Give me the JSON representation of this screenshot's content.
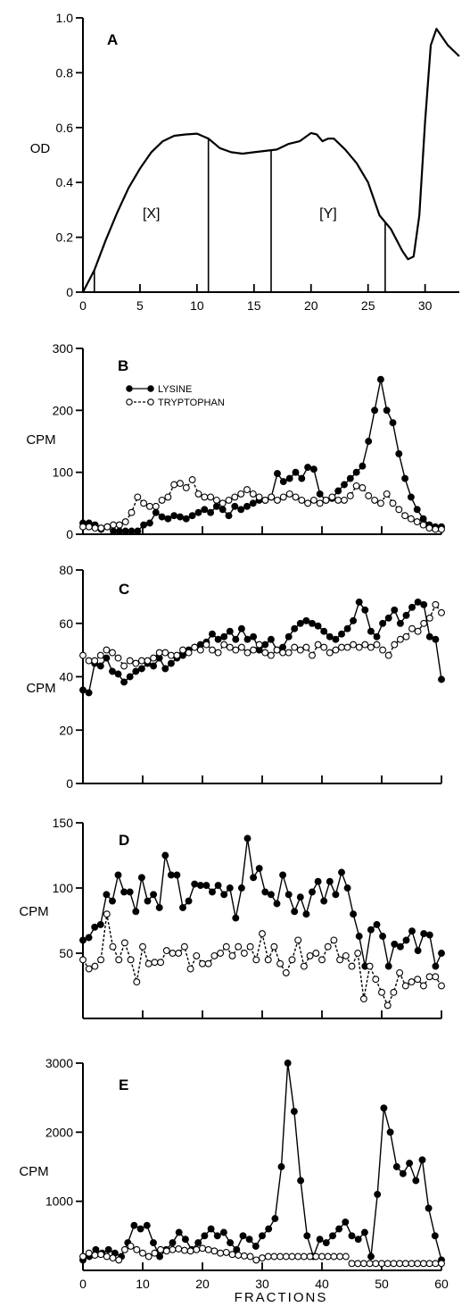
{
  "x_axis_title": "FRACTIONS",
  "chart_data": [
    {
      "type": "line",
      "panel": "A",
      "ylabel": "OD",
      "xlim": [
        0,
        33
      ],
      "ylim": [
        0,
        1.0
      ],
      "xticks": [
        0,
        5,
        10,
        15,
        20,
        25,
        30
      ],
      "yticks": [
        0,
        0.2,
        0.4,
        0.6,
        0.8,
        1.0
      ],
      "xticklabels": [
        "0",
        "5",
        "10",
        "15",
        "20",
        "25",
        "30"
      ],
      "yticklabels": [
        "0",
        "0.2",
        "0.4",
        "0.6",
        "0.8",
        "1.0"
      ],
      "dividers": [
        1,
        11,
        16.5,
        26.5
      ],
      "regions": [
        {
          "label": "[X]",
          "x": 6,
          "y": 0.27
        },
        {
          "label": "[Y]",
          "x": 21.5,
          "y": 0.27
        }
      ],
      "series": [
        {
          "x": [
            0,
            1,
            2,
            3,
            4,
            5,
            6,
            7,
            8,
            9,
            10,
            11,
            12,
            13,
            14,
            15,
            16,
            17,
            18,
            19,
            20,
            20.5,
            21,
            21.5,
            22,
            23,
            24,
            25,
            26,
            27,
            28,
            28.5,
            29,
            29.5,
            30,
            30.5,
            31,
            32,
            33
          ],
          "values": [
            0,
            0.08,
            0.19,
            0.29,
            0.38,
            0.45,
            0.51,
            0.55,
            0.57,
            0.575,
            0.578,
            0.56,
            0.525,
            0.51,
            0.505,
            0.51,
            0.515,
            0.52,
            0.54,
            0.55,
            0.58,
            0.575,
            0.55,
            0.56,
            0.56,
            0.52,
            0.47,
            0.4,
            0.28,
            0.23,
            0.15,
            0.12,
            0.13,
            0.28,
            0.62,
            0.9,
            0.96,
            0.9,
            0.86
          ]
        }
      ]
    },
    {
      "type": "line",
      "panel": "B",
      "ylabel": "CPM",
      "xlim": [
        0,
        60
      ],
      "ylim": [
        0,
        300
      ],
      "xticks": [
        0,
        10,
        20,
        30,
        40,
        50,
        60
      ],
      "yticks": [
        0,
        100,
        200,
        300
      ],
      "yticklabels": [
        "0",
        "100",
        "200",
        "300"
      ],
      "legend": [
        "LYSINE",
        "TRYPTOPHAN"
      ],
      "series": [
        {
          "name": "LYSINE",
          "style": "filled-solid",
          "values": [
            18,
            18,
            15,
            8,
            12,
            5,
            5,
            5,
            5,
            5,
            15,
            18,
            35,
            28,
            25,
            30,
            28,
            25,
            30,
            35,
            40,
            35,
            45,
            40,
            30,
            45,
            40,
            45,
            50,
            55,
            55,
            60,
            98,
            85,
            90,
            100,
            90,
            108,
            105,
            65,
            55,
            58,
            70,
            80,
            90,
            100,
            110,
            150,
            200,
            250,
            200,
            180,
            130,
            90,
            60,
            40,
            25,
            15,
            12,
            12
          ]
        },
        {
          "name": "TRYPTOPHAN",
          "style": "open-dashed",
          "values": [
            12,
            12,
            10,
            10,
            12,
            15,
            15,
            20,
            35,
            60,
            50,
            45,
            45,
            55,
            60,
            80,
            82,
            75,
            88,
            65,
            60,
            60,
            55,
            50,
            55,
            60,
            65,
            72,
            65,
            60,
            55,
            60,
            55,
            60,
            65,
            60,
            55,
            50,
            55,
            50,
            55,
            60,
            55,
            55,
            62,
            78,
            75,
            62,
            55,
            50,
            65,
            50,
            40,
            30,
            25,
            20,
            15,
            10,
            8,
            8
          ]
        }
      ]
    },
    {
      "type": "line",
      "panel": "C",
      "ylabel": "CPM",
      "xlim": [
        0,
        60
      ],
      "ylim": [
        0,
        80
      ],
      "xticks": [
        0,
        10,
        20,
        30,
        40,
        50,
        60
      ],
      "yticks": [
        0,
        20,
        40,
        60,
        80
      ],
      "yticklabels": [
        "0",
        "20",
        "40",
        "60",
        "80"
      ],
      "series": [
        {
          "name": "LYSINE",
          "style": "filled-solid",
          "values": [
            35,
            34,
            45,
            44,
            47,
            42,
            41,
            38,
            40,
            42,
            43,
            45,
            44,
            47,
            43,
            45,
            47,
            48,
            50,
            51,
            52,
            53,
            56,
            54,
            55,
            57,
            54,
            58,
            54,
            55,
            50,
            52,
            54,
            50,
            51,
            55,
            58,
            60,
            61,
            60,
            59,
            57,
            55,
            54,
            56,
            58,
            61,
            68,
            65,
            57,
            55,
            60,
            62,
            65,
            60,
            63,
            66,
            68,
            67,
            55,
            54,
            39
          ]
        },
        {
          "name": "TRYPTOPHAN",
          "style": "open-dashed",
          "values": [
            48,
            46,
            46,
            48,
            50,
            49,
            47,
            44,
            46,
            45,
            46,
            46,
            47,
            49,
            49,
            48,
            48,
            50,
            49,
            51,
            50,
            52,
            50,
            49,
            52,
            51,
            50,
            51,
            49,
            50,
            52,
            49,
            48,
            50,
            49,
            49,
            51,
            50,
            51,
            48,
            52,
            51,
            49,
            50,
            51,
            51,
            52,
            51,
            52,
            51,
            52,
            50,
            48,
            52,
            54,
            55,
            58,
            57,
            60,
            62,
            67,
            64
          ]
        }
      ]
    },
    {
      "type": "line",
      "panel": "D",
      "ylabel": "CPM",
      "xlim": [
        0,
        60
      ],
      "ylim": [
        0,
        150
      ],
      "xticks": [
        0,
        10,
        20,
        30,
        40,
        50,
        60
      ],
      "yticks": [
        50,
        100,
        150
      ],
      "yticklabels": [
        "50",
        "100",
        "150"
      ],
      "series": [
        {
          "name": "LYSINE",
          "style": "filled-solid",
          "values": [
            60,
            62,
            70,
            72,
            95,
            90,
            110,
            97,
            97,
            82,
            108,
            90,
            95,
            85,
            125,
            110,
            110,
            85,
            90,
            103,
            102,
            102,
            97,
            102,
            95,
            100,
            77,
            100,
            138,
            108,
            115,
            97,
            95,
            88,
            110,
            95,
            82,
            93,
            80,
            97,
            105,
            90,
            105,
            95,
            112,
            100,
            80,
            63,
            40,
            68,
            72,
            63,
            40,
            57,
            55,
            60,
            67,
            52,
            65,
            64,
            40,
            50
          ]
        },
        {
          "name": "TRYPTOPHAN",
          "style": "open-dashed",
          "values": [
            45,
            38,
            40,
            45,
            80,
            55,
            45,
            58,
            45,
            28,
            55,
            42,
            43,
            43,
            52,
            50,
            50,
            55,
            38,
            48,
            42,
            42,
            48,
            50,
            55,
            48,
            55,
            50,
            55,
            45,
            65,
            45,
            55,
            42,
            35,
            45,
            60,
            40,
            48,
            50,
            45,
            55,
            60,
            45,
            48,
            40,
            50,
            15,
            40,
            30,
            20,
            10,
            20,
            35,
            25,
            28,
            30,
            25,
            32,
            32,
            25
          ]
        }
      ]
    },
    {
      "type": "line",
      "panel": "E",
      "ylabel": "CPM",
      "xlim": [
        0,
        60
      ],
      "ylim": [
        0,
        3000
      ],
      "xticks": [
        0,
        10,
        20,
        30,
        40,
        50,
        60
      ],
      "yticks": [
        1000,
        2000,
        3000
      ],
      "xticklabels": [
        "0",
        "10",
        "20",
        "30",
        "40",
        "50",
        "60"
      ],
      "yticklabels": [
        "1000",
        "2000",
        "3000"
      ],
      "series": [
        {
          "name": "LYSINE",
          "style": "filled-solid",
          "values": [
            150,
            200,
            300,
            250,
            300,
            250,
            200,
            400,
            650,
            600,
            650,
            400,
            200,
            300,
            400,
            550,
            450,
            300,
            400,
            500,
            600,
            500,
            550,
            400,
            300,
            500,
            450,
            350,
            500,
            600,
            750,
            1500,
            3000,
            2300,
            1300,
            500,
            200,
            450,
            400,
            500,
            600,
            700,
            500,
            450,
            550,
            200,
            1100,
            2350,
            2000,
            1500,
            1400,
            1550,
            1300,
            1600,
            900,
            500,
            150
          ]
        },
        {
          "name": "TRYPTOPHAN",
          "style": "open-dashed",
          "values": [
            200,
            250,
            220,
            230,
            200,
            180,
            150,
            300,
            350,
            300,
            250,
            200,
            250,
            300,
            280,
            300,
            310,
            290,
            280,
            300,
            320,
            300,
            280,
            250,
            260,
            230,
            220,
            210,
            200,
            150,
            180,
            200,
            200,
            200,
            200,
            200,
            200,
            200,
            200,
            200,
            200,
            200,
            200,
            200,
            200,
            100,
            100,
            100,
            100,
            100,
            100,
            100,
            100,
            100,
            100,
            100,
            100,
            100,
            100,
            100,
            100
          ]
        }
      ]
    }
  ]
}
